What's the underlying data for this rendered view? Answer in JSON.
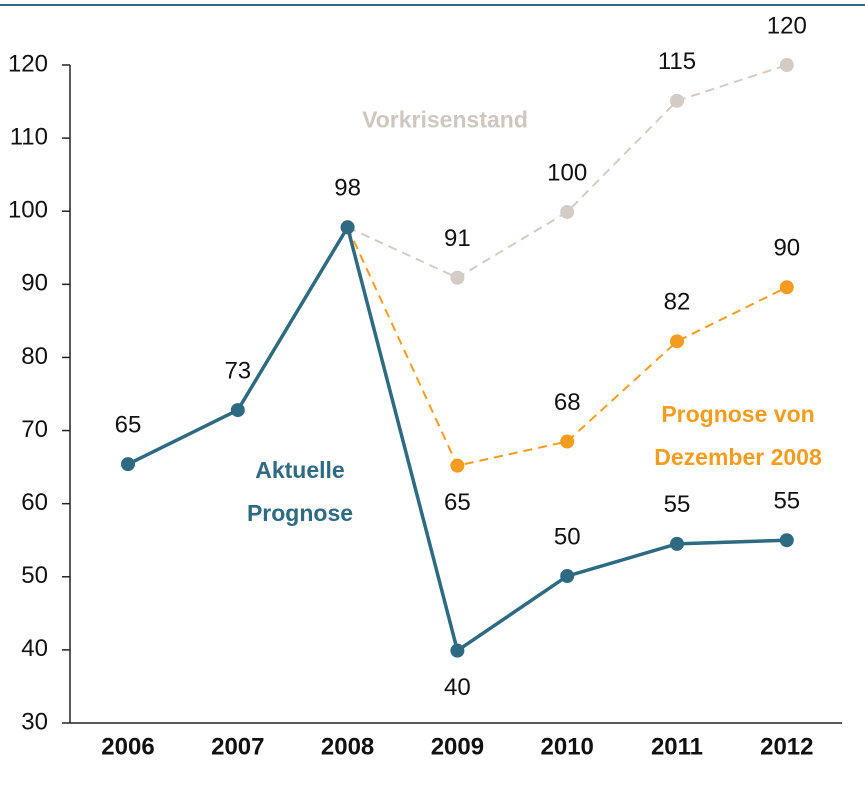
{
  "chart_data": {
    "type": "line",
    "categories": [
      "2006",
      "2007",
      "2008",
      "2009",
      "2010",
      "2011",
      "2012"
    ],
    "series": [
      {
        "name": "Vorkrisenstand",
        "color": "#d3cbc5",
        "dashed": true,
        "values": [
          null,
          null,
          97.8,
          90.9,
          99.9,
          115.1,
          120
        ],
        "value_labels": [
          null,
          null,
          null,
          "91",
          "100",
          "115",
          "120"
        ]
      },
      {
        "name": "Prognose von Dezember 2008",
        "color": "#f39c1f",
        "dashed": true,
        "values": [
          null,
          null,
          97.8,
          65.2,
          68.5,
          82.2,
          89.6
        ],
        "value_labels": [
          null,
          null,
          null,
          "65",
          "68",
          "82",
          "90"
        ]
      },
      {
        "name": "Aktuelle Prognose",
        "color": "#2e6a82",
        "dashed": false,
        "values": [
          65.4,
          72.8,
          97.8,
          39.9,
          50.1,
          54.5,
          55
        ],
        "value_labels": [
          "65",
          "73",
          "98",
          "40",
          "50",
          "55",
          "55"
        ]
      }
    ],
    "ylim": [
      30,
      120
    ],
    "yticks": [
      30,
      40,
      50,
      60,
      70,
      80,
      90,
      100,
      110,
      120
    ]
  }
}
